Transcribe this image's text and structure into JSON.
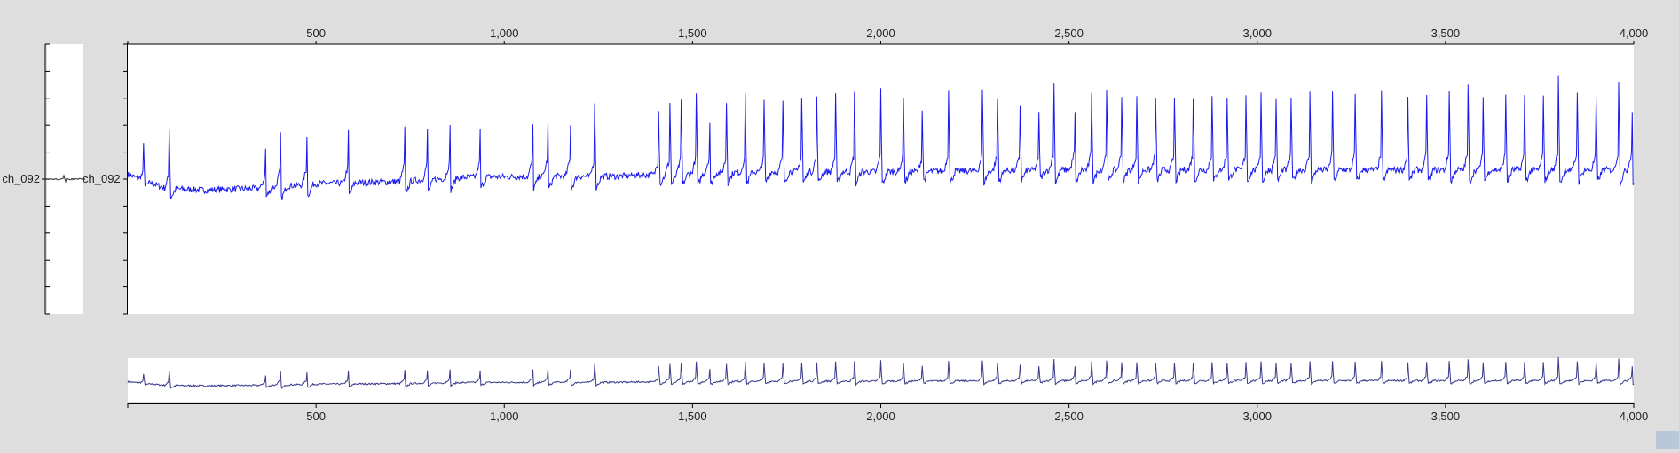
{
  "channel_label_left": "ch_092",
  "channel_label_right": "ch_092",
  "colors": {
    "background": "#dedede",
    "plot_background": "#ffffff",
    "trace_main": "#1a1aee",
    "trace_overview": "#3a3a8c",
    "axis": "#000000"
  },
  "chart_data": [
    {
      "type": "line",
      "title": "",
      "xlabel": "",
      "ylabel": "",
      "xlim": [
        0,
        4000
      ],
      "x_ticks": [
        "500",
        "1,000",
        "1,500",
        "2,000",
        "2,500",
        "3,000",
        "3,500",
        "4,000"
      ],
      "x_tick_values": [
        500,
        1000,
        1500,
        2000,
        2500,
        3000,
        3500,
        4000
      ],
      "series": [
        {
          "baseline_points": [
            [
              0,
              0.05
            ],
            [
              100,
              -0.1
            ],
            [
              200,
              -0.12
            ],
            [
              350,
              -0.1
            ],
            [
              500,
              -0.05
            ],
            [
              700,
              -0.03
            ],
            [
              900,
              0.02
            ],
            [
              1100,
              0.03
            ],
            [
              1300,
              0.03
            ],
            [
              1400,
              0.05
            ],
            [
              1700,
              0.08
            ],
            [
              2000,
              0.08
            ],
            [
              2500,
              0.1
            ],
            [
              3000,
              0.1
            ],
            [
              3500,
              0.1
            ],
            [
              4000,
              0.1
            ]
          ],
          "spike_times": [
            42,
            110,
            365,
            405,
            475,
            585,
            735,
            795,
            855,
            935,
            1075,
            1115,
            1175,
            1240,
            1410,
            1440,
            1470,
            1510,
            1545,
            1590,
            1640,
            1690,
            1740,
            1790,
            1830,
            1880,
            1930,
            2000,
            2060,
            2110,
            2180,
            2270,
            2310,
            2370,
            2420,
            2460,
            2515,
            2560,
            2600,
            2640,
            2680,
            2730,
            2780,
            2830,
            2880,
            2920,
            2970,
            3010,
            3050,
            3090,
            3140,
            3200,
            3260,
            3330,
            3400,
            3450,
            3510,
            3560,
            3600,
            3660,
            3710,
            3760,
            3800,
            3850,
            3900,
            3960,
            3995
          ],
          "spike_heights": [
            0.35,
            0.6,
            0.55,
            0.75,
            0.7,
            0.72,
            0.75,
            0.7,
            0.72,
            0.65,
            0.72,
            0.75,
            0.75,
            0.75,
            0.65,
            0.7,
            0.72,
            0.78,
            0.72,
            0.7,
            0.75,
            0.7,
            0.68,
            0.72,
            0.72,
            0.78,
            0.78,
            0.82,
            0.75,
            0.6,
            0.82,
            0.8,
            0.7,
            0.65,
            0.55,
            0.85,
            0.8,
            0.78,
            0.82,
            0.75,
            0.72,
            0.72,
            0.7,
            0.72,
            0.75,
            0.72,
            0.75,
            0.78,
            0.72,
            0.72,
            0.75,
            0.78,
            0.75,
            0.75,
            0.72,
            0.72,
            0.8,
            0.82,
            0.72,
            0.75,
            0.72,
            0.72,
            0.9,
            0.78,
            0.72,
            0.85,
            0.82
          ],
          "y_range": [
            -1,
            1
          ]
        }
      ]
    }
  ]
}
